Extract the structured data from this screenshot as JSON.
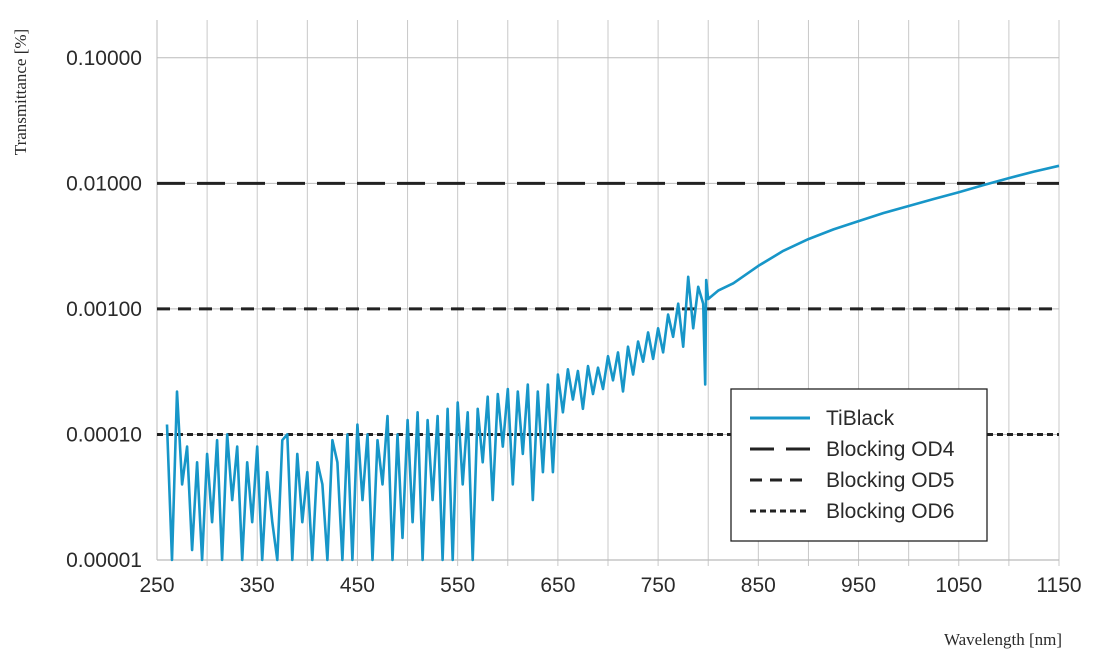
{
  "chart_data": {
    "type": "line",
    "title": "",
    "xlabel": "Wavelength [nm]",
    "ylabel": "Transmittance [%]",
    "xlim": [
      250,
      1150
    ],
    "ylim": [
      1e-05,
      0.2
    ],
    "yscale": "log",
    "grid": true,
    "legend_position": "bottom-right",
    "xticks": [
      "250",
      "350",
      "450",
      "550",
      "650",
      "750",
      "850",
      "950",
      "1050",
      "1150"
    ],
    "yticks": [
      "0.00001",
      "0.00010",
      "0.00100",
      "0.01000",
      "0.10000"
    ],
    "series": [
      {
        "name": "TiBlack",
        "color": "#1796c8",
        "style": "solid",
        "x": [
          260,
          265,
          270,
          275,
          280,
          285,
          290,
          295,
          300,
          305,
          310,
          315,
          320,
          325,
          330,
          335,
          340,
          345,
          350,
          355,
          360,
          365,
          370,
          375,
          380,
          385,
          390,
          395,
          400,
          405,
          410,
          415,
          420,
          425,
          430,
          435,
          440,
          445,
          450,
          455,
          460,
          465,
          470,
          475,
          480,
          485,
          490,
          495,
          500,
          505,
          510,
          515,
          520,
          525,
          530,
          535,
          540,
          545,
          550,
          555,
          560,
          565,
          570,
          575,
          580,
          585,
          590,
          595,
          600,
          605,
          610,
          615,
          620,
          625,
          630,
          635,
          640,
          645,
          650,
          655,
          660,
          665,
          670,
          675,
          680,
          685,
          690,
          695,
          700,
          705,
          710,
          715,
          720,
          725,
          730,
          735,
          740,
          745,
          750,
          755,
          760,
          765,
          770,
          775,
          780,
          785,
          790,
          795,
          797,
          798,
          800,
          810,
          825,
          850,
          875,
          900,
          925,
          950,
          975,
          1000,
          1025,
          1050,
          1075,
          1100,
          1125,
          1150
        ],
        "y": [
          0.00012,
          5e-06,
          0.00022,
          4e-05,
          8e-05,
          1.2e-05,
          6e-05,
          6e-06,
          7e-05,
          2e-05,
          9e-05,
          8e-06,
          0.0001,
          3e-05,
          8e-05,
          6e-06,
          6e-05,
          2e-05,
          8e-05,
          5e-06,
          5e-05,
          2e-05,
          5e-06,
          9e-05,
          0.0001,
          6e-06,
          7e-05,
          2e-05,
          5e-05,
          8e-06,
          6e-05,
          4e-05,
          5e-06,
          9e-05,
          6e-05,
          9e-06,
          0.0001,
          5e-06,
          0.00012,
          3e-05,
          0.0001,
          6e-06,
          9e-05,
          4e-05,
          0.00014,
          8e-06,
          0.0001,
          1.5e-05,
          0.00013,
          2e-05,
          0.00015,
          5e-06,
          0.00013,
          3e-05,
          0.00014,
          1e-05,
          0.00016,
          7e-06,
          0.00018,
          4e-05,
          0.00015,
          5e-06,
          0.00016,
          6e-05,
          0.0002,
          3e-05,
          0.00021,
          8e-05,
          0.00023,
          4e-05,
          0.00022,
          7e-05,
          0.00025,
          3e-05,
          0.00022,
          5e-05,
          0.00025,
          5e-05,
          0.0003,
          0.00015,
          0.00033,
          0.00019,
          0.00032,
          0.00016,
          0.00035,
          0.00021,
          0.00034,
          0.00023,
          0.00042,
          0.00027,
          0.00045,
          0.00022,
          0.0005,
          0.0003,
          0.00055,
          0.00038,
          0.00065,
          0.0004,
          0.0007,
          0.00045,
          0.0009,
          0.0006,
          0.0011,
          0.0005,
          0.0018,
          0.0007,
          0.0015,
          0.0011,
          0.00025,
          0.0017,
          0.0012,
          0.0014,
          0.0016,
          0.0022,
          0.0029,
          0.0036,
          0.0043,
          0.005,
          0.0058,
          0.0066,
          0.0075,
          0.0085,
          0.0097,
          0.011,
          0.0124,
          0.0138
        ]
      },
      {
        "name": "Blocking OD4",
        "color": "#222222",
        "style": "long-dash",
        "y": 0.01
      },
      {
        "name": "Blocking OD5",
        "color": "#222222",
        "style": "dash",
        "y": 0.001
      },
      {
        "name": "Blocking OD6",
        "color": "#222222",
        "style": "short-dash",
        "y": 0.0001
      }
    ]
  }
}
